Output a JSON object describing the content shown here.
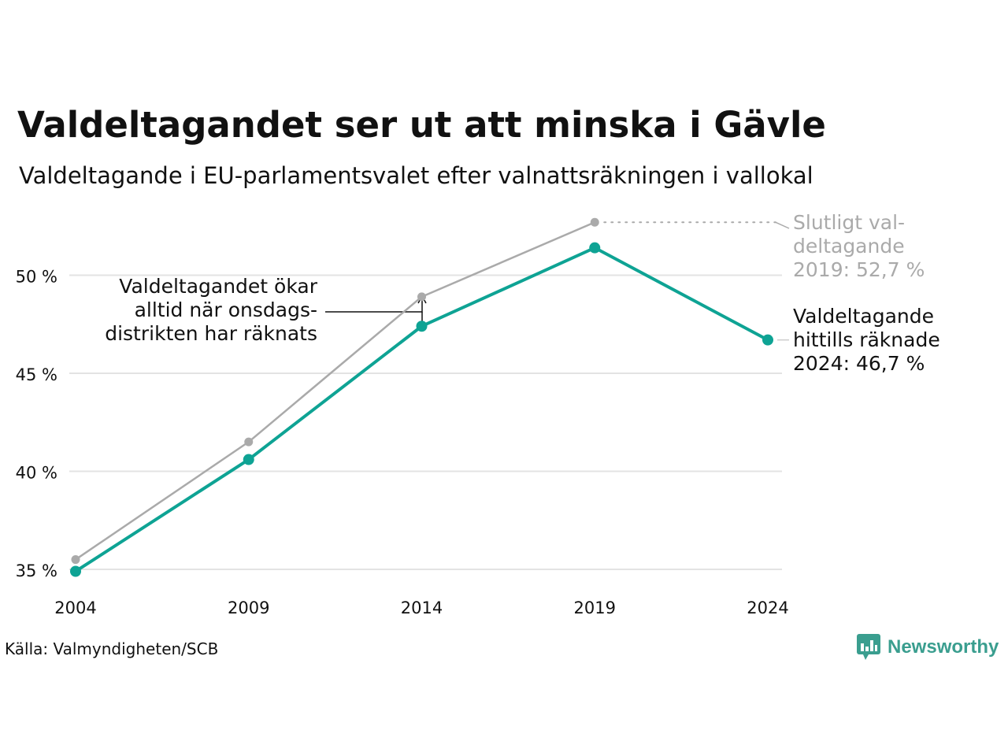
{
  "header": {
    "title": "Valdeltagandet ser ut att minska i Gävle",
    "subtitle": "Valdeltagande i EU-parlamentsvalet efter valnattsräkningen i vallokal"
  },
  "footer": {
    "source": "Källa: Valmyndigheten/SCB",
    "brand": "Newsworthy"
  },
  "colors": {
    "counted": "#0ea394",
    "final": "#aaaaaa",
    "grid": "#e3e3e3",
    "brand": "#3a9e8f"
  },
  "chart_data": {
    "type": "line",
    "categories": [
      "2004",
      "2009",
      "2014",
      "2019",
      "2024"
    ],
    "series": [
      {
        "key": "final",
        "values": [
          35.5,
          41.5,
          48.9,
          52.7,
          null
        ]
      },
      {
        "key": "counted",
        "values": [
          34.9,
          40.6,
          47.4,
          51.4,
          46.7
        ]
      }
    ],
    "y_ticks": [
      35,
      40,
      45,
      50
    ],
    "y_tick_labels": [
      "35 %",
      "40 %",
      "45 %",
      "50 %"
    ],
    "ylim": [
      35,
      52.7
    ],
    "grid": true,
    "annotations": {
      "final_2019": [
        "Slutligt val-",
        "deltagande",
        "2019: 52,7 %"
      ],
      "counted_2024": [
        "Valdeltagande",
        "hittills räknade",
        "2024: 46,7 %"
      ],
      "wednesday_note": [
        "Valdeltagandet ökar",
        "alltid när onsdags-",
        "distrikten har räknats"
      ]
    }
  }
}
